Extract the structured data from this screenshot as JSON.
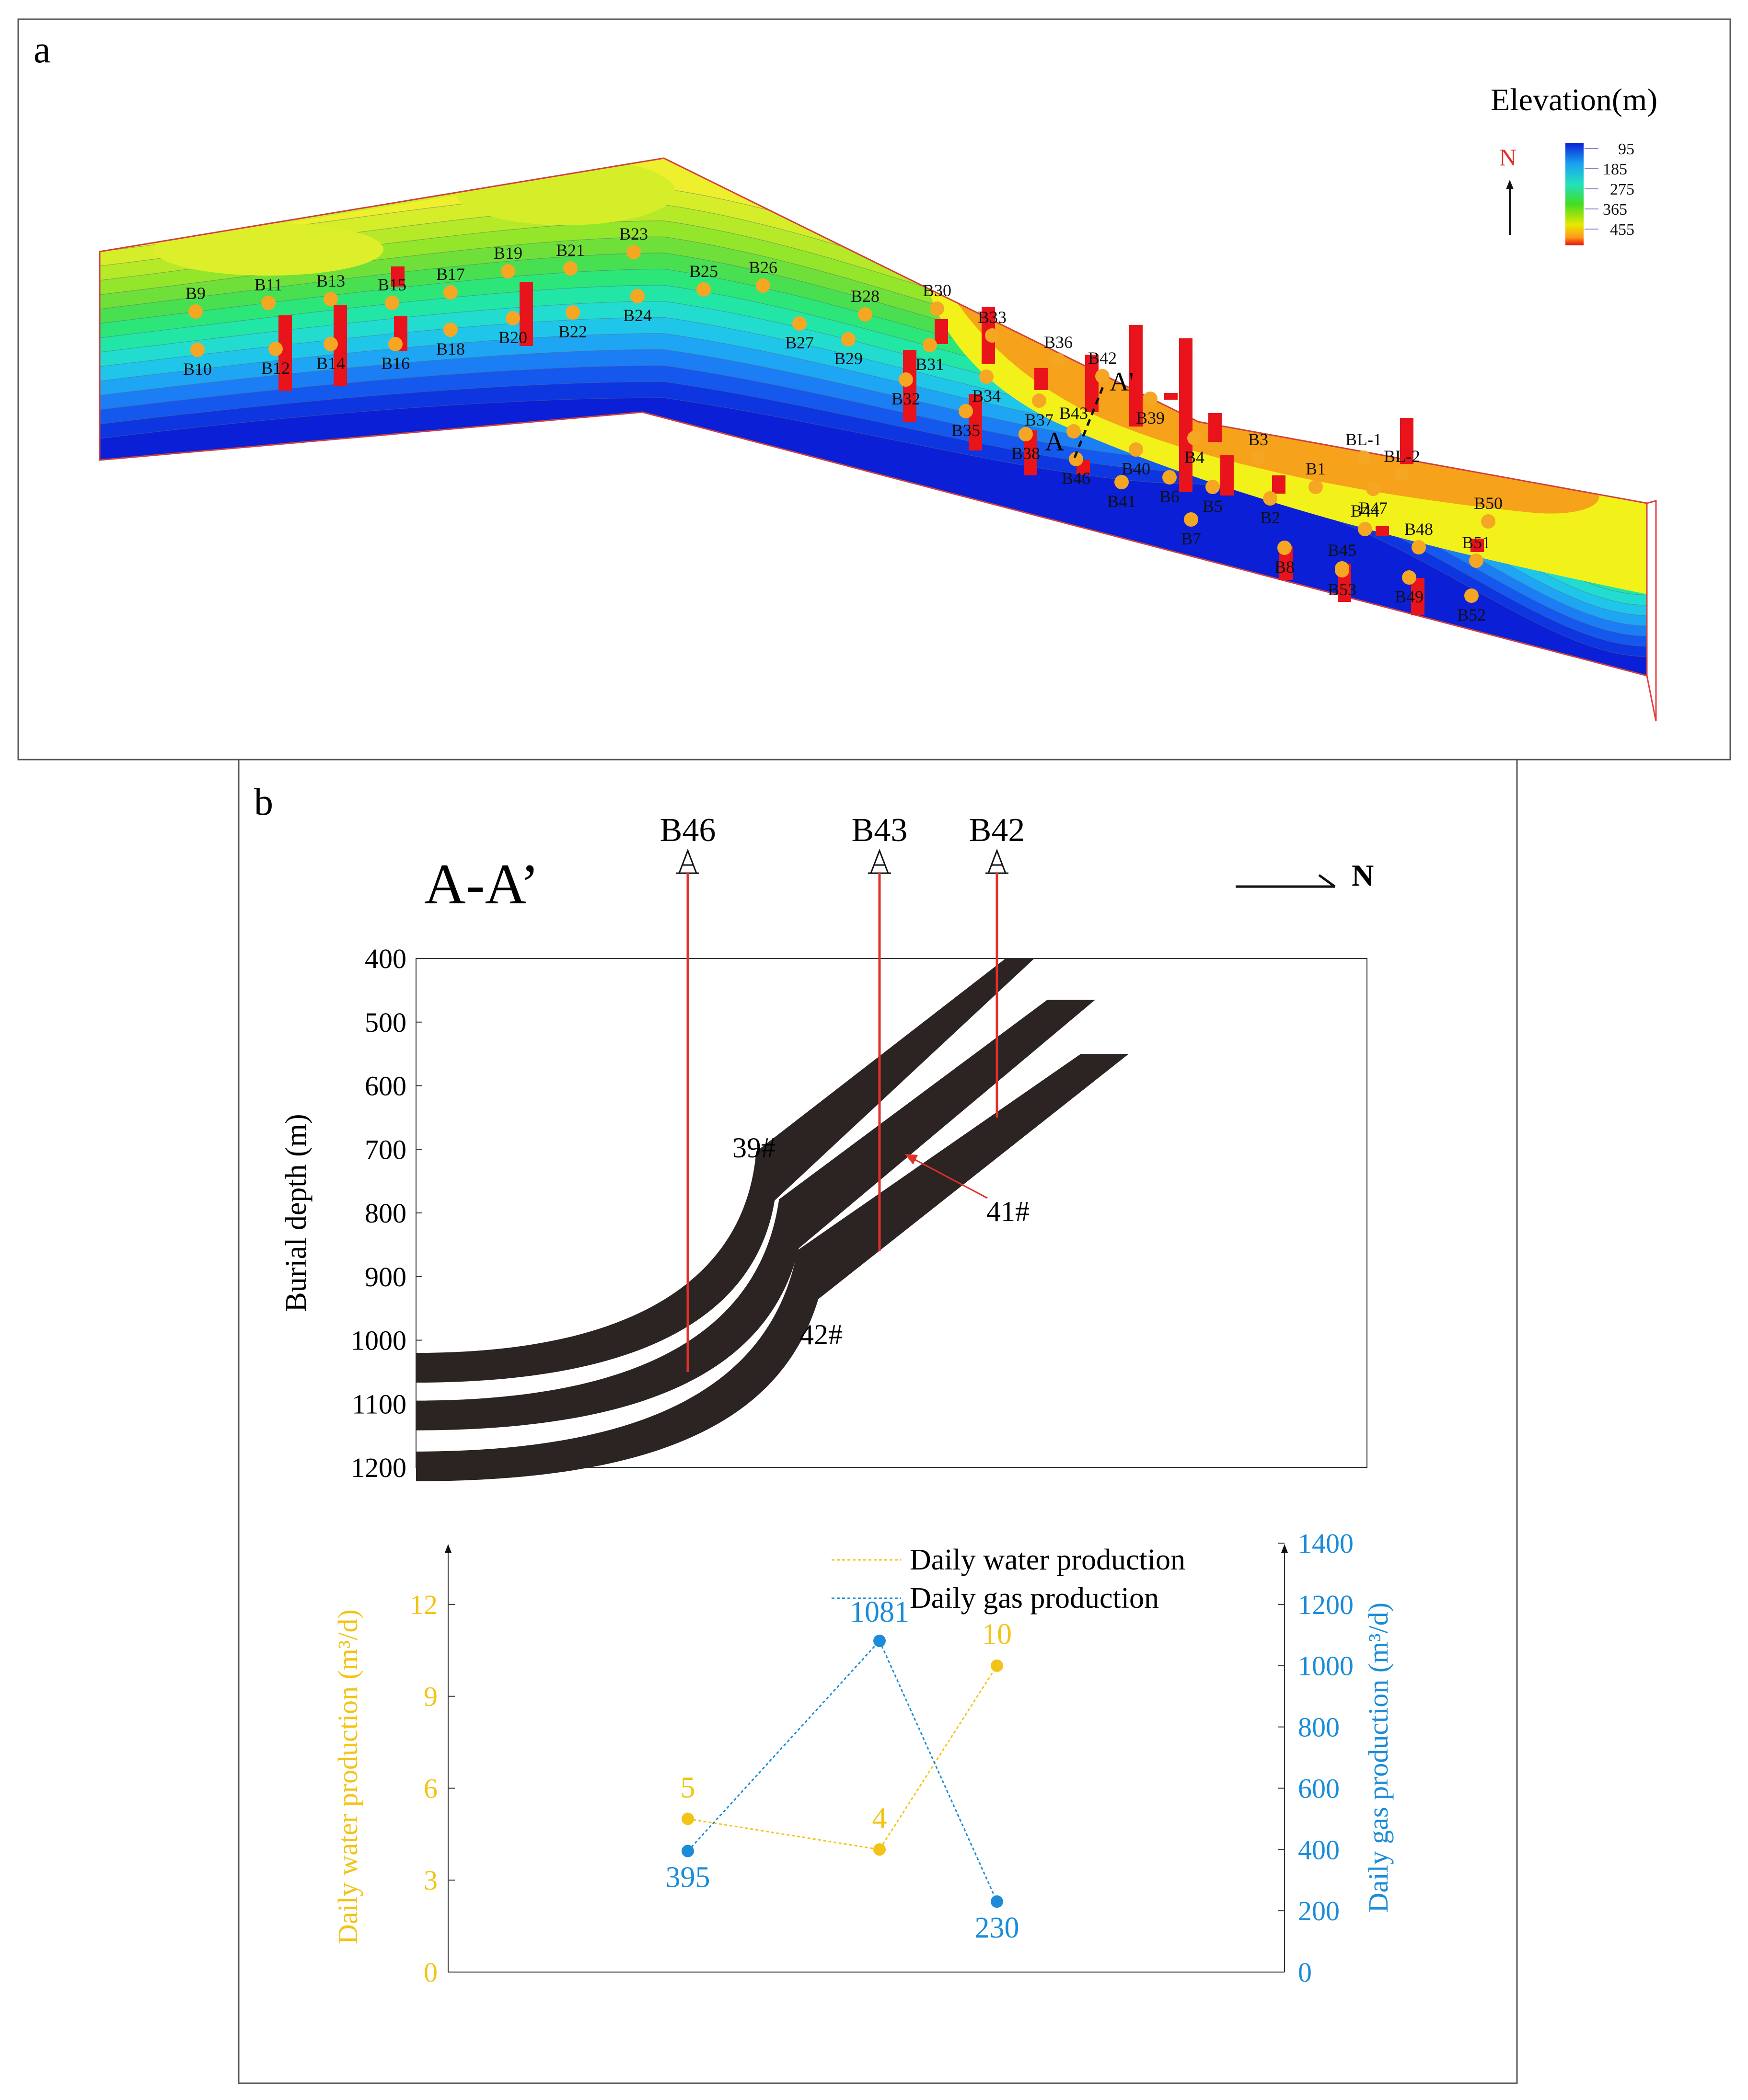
{
  "panel_a": {
    "label": "a",
    "north_label": "N",
    "legend_title": "Elevation(m)",
    "legend_ticks": [
      "95",
      "185",
      "275",
      "365",
      "455"
    ],
    "coal_seam_labels": {
      "a": "A",
      "a_prime": "A'"
    },
    "wells": [
      {
        "name": "B9"
      },
      {
        "name": "B10"
      },
      {
        "name": "B11"
      },
      {
        "name": "B12"
      },
      {
        "name": "B13"
      },
      {
        "name": "B14"
      },
      {
        "name": "B15"
      },
      {
        "name": "B16"
      },
      {
        "name": "B17"
      },
      {
        "name": "B18"
      },
      {
        "name": "B19"
      },
      {
        "name": "B20"
      },
      {
        "name": "B21"
      },
      {
        "name": "B22"
      },
      {
        "name": "B23"
      },
      {
        "name": "B24"
      },
      {
        "name": "B25"
      },
      {
        "name": "B26"
      },
      {
        "name": "B27"
      },
      {
        "name": "B28"
      },
      {
        "name": "B29"
      },
      {
        "name": "B30"
      },
      {
        "name": "B31"
      },
      {
        "name": "B32"
      },
      {
        "name": "B33"
      },
      {
        "name": "B34"
      },
      {
        "name": "B35"
      },
      {
        "name": "B36"
      },
      {
        "name": "B37"
      },
      {
        "name": "B38"
      },
      {
        "name": "B39"
      },
      {
        "name": "B40"
      },
      {
        "name": "B41"
      },
      {
        "name": "B42"
      },
      {
        "name": "B43"
      },
      {
        "name": "B46"
      },
      {
        "name": "B4"
      },
      {
        "name": "B3"
      },
      {
        "name": "B5"
      },
      {
        "name": "B6"
      },
      {
        "name": "B7"
      },
      {
        "name": "B1"
      },
      {
        "name": "B2"
      },
      {
        "name": "BL-1"
      },
      {
        "name": "BL-2"
      },
      {
        "name": "B47"
      },
      {
        "name": "B44"
      },
      {
        "name": "B50"
      },
      {
        "name": "B48"
      },
      {
        "name": "B45"
      },
      {
        "name": "B51"
      },
      {
        "name": "B8"
      },
      {
        "name": "B53"
      },
      {
        "name": "B49"
      },
      {
        "name": "B52"
      }
    ]
  },
  "panel_b": {
    "label": "b",
    "section_title": "A-A’",
    "north_label": "N",
    "wells": [
      "B46",
      "B43",
      "B42"
    ],
    "seam_labels": [
      "39#",
      "41#",
      "42#"
    ]
  },
  "chart_data": [
    {
      "type": "area",
      "title": "A-A’",
      "xlabel": "",
      "ylabel": "Burial depth (m)",
      "ylim": [
        1200,
        400
      ],
      "yticks": [
        400,
        500,
        600,
        700,
        800,
        900,
        1000,
        1100,
        1200
      ],
      "wells": [
        {
          "name": "B46",
          "bottom_depth": 1050
        },
        {
          "name": "B43",
          "bottom_depth": 860
        },
        {
          "name": "B42",
          "bottom_depth": 650
        }
      ],
      "series": [
        {
          "name": "39#",
          "top_depth_at_left": 1020,
          "top_depth_at_right": 400
        },
        {
          "name": "41#",
          "top_depth_at_left": 1095,
          "top_depth_at_right": 465
        },
        {
          "name": "42#",
          "top_depth_at_left": 1175,
          "top_depth_at_right": 550
        }
      ]
    },
    {
      "type": "line",
      "title": "",
      "categories": [
        "B46",
        "B43",
        "B42"
      ],
      "ylabel": "Daily water production (m³/d)",
      "y2label": "Daily gas production (m³/d)",
      "ylim": [
        0,
        14
      ],
      "yticks": [
        0,
        3,
        6,
        9,
        12
      ],
      "y2lim": [
        0,
        1400
      ],
      "y2ticks": [
        0,
        200,
        400,
        600,
        800,
        1000,
        1200,
        1400
      ],
      "series": [
        {
          "name": "Daily water production",
          "axis": "left",
          "color": "#f2c417",
          "values": [
            5,
            4,
            10
          ]
        },
        {
          "name": "Daily gas production",
          "axis": "right",
          "color": "#1a8cd8",
          "values": [
            395,
            1081,
            230
          ]
        }
      ],
      "legend": "top-right"
    }
  ],
  "colors": {
    "water": "#f2c417",
    "gas": "#1a8cd8",
    "well_line": "#e0312b",
    "seam": "#2b2422",
    "well_dot": "#f5a623",
    "bar": "#e8131b"
  }
}
